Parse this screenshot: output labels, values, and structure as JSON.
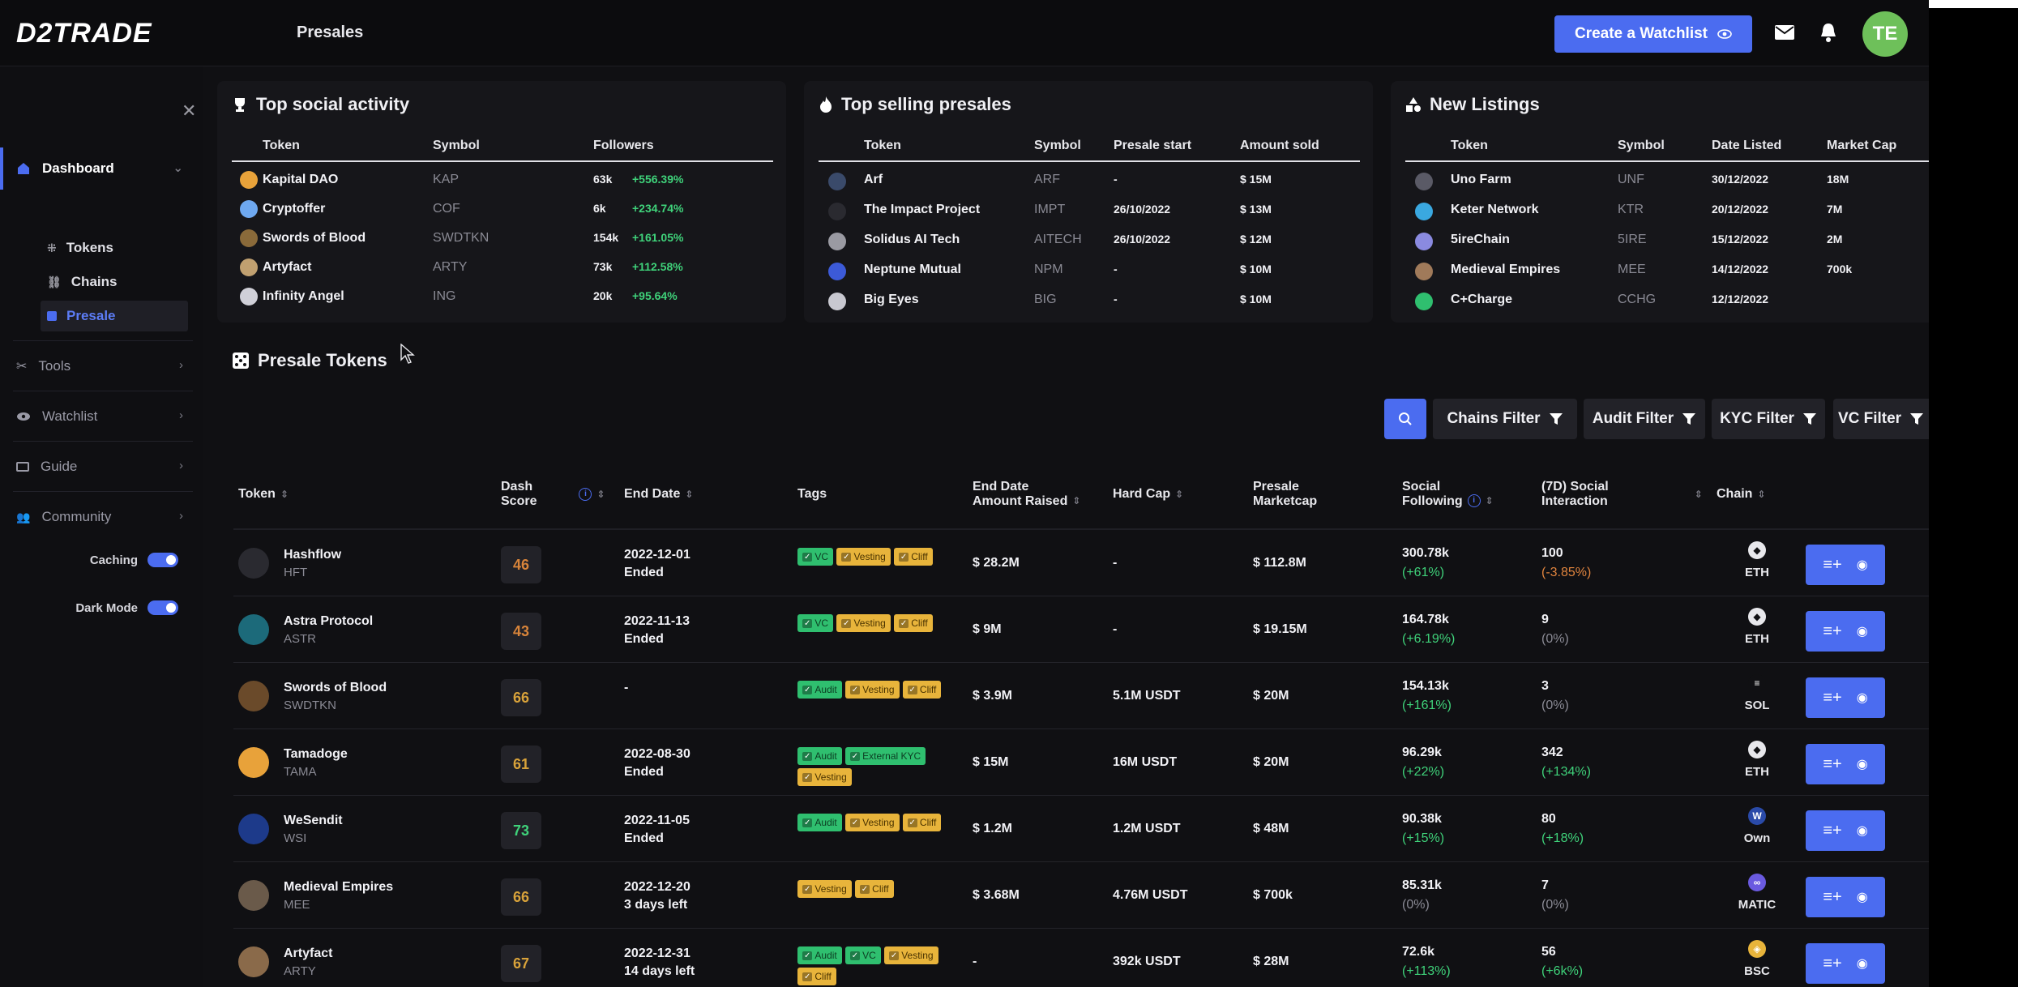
{
  "header": {
    "logo": "D2TRADE",
    "page_title": "Presales",
    "watchlist_button": "Create a Watchlist",
    "avatar_initials": "TE",
    "icons": [
      "eye-icon",
      "mail-icon",
      "bell-icon"
    ]
  },
  "sidebar": {
    "dashboard": "Dashboard",
    "tokens": "Tokens",
    "chains": "Chains",
    "presale": "Presale",
    "tools": "Tools",
    "watchlist": "Watchlist",
    "guide": "Guide",
    "community": "Community",
    "caching": "Caching",
    "dark_mode": "Dark Mode"
  },
  "social": {
    "title": "Top social activity",
    "cols": [
      "Token",
      "Symbol",
      "Followers"
    ],
    "rows": [
      {
        "token": "Kapital DAO",
        "symbol": "KAP",
        "followers": "63k",
        "change": "+556.39%"
      },
      {
        "token": "Cryptoffer",
        "symbol": "COF",
        "followers": "6k",
        "change": "+234.74%"
      },
      {
        "token": "Swords of Blood",
        "symbol": "SWDTKN",
        "followers": "154k",
        "change": "+161.05%"
      },
      {
        "token": "Artyfact",
        "symbol": "ARTY",
        "followers": "73k",
        "change": "+112.58%"
      },
      {
        "token": "Infinity Angel",
        "symbol": "ING",
        "followers": "20k",
        "change": "+95.64%"
      }
    ]
  },
  "selling": {
    "title": "Top selling presales",
    "cols": [
      "Token",
      "Symbol",
      "Presale start",
      "Amount sold"
    ],
    "rows": [
      {
        "token": "Arf",
        "symbol": "ARF",
        "start": "-",
        "amount": "$ 15M"
      },
      {
        "token": "The Impact Project",
        "symbol": "IMPT",
        "start": "26/10/2022",
        "amount": "$ 13M"
      },
      {
        "token": "Solidus AI Tech",
        "symbol": "AITECH",
        "start": "26/10/2022",
        "amount": "$ 12M"
      },
      {
        "token": "Neptune Mutual",
        "symbol": "NPM",
        "start": "-",
        "amount": "$ 10M"
      },
      {
        "token": "Big Eyes",
        "symbol": "BIG",
        "start": "-",
        "amount": "$ 10M"
      }
    ]
  },
  "listings": {
    "title": "New Listings",
    "cols": [
      "Token",
      "Symbol",
      "Date Listed",
      "Market Cap"
    ],
    "rows": [
      {
        "token": "Uno Farm",
        "symbol": "UNF",
        "date": "30/12/2022",
        "cap": "18M"
      },
      {
        "token": "Keter Network",
        "symbol": "KTR",
        "date": "20/12/2022",
        "cap": "7M"
      },
      {
        "token": "5ireChain",
        "symbol": "5IRE",
        "date": "15/12/2022",
        "cap": "2M"
      },
      {
        "token": "Medieval Empires",
        "symbol": "MEE",
        "date": "14/12/2022",
        "cap": "700k"
      },
      {
        "token": "C+Charge",
        "symbol": "CCHG",
        "date": "12/12/2022",
        "cap": ""
      }
    ]
  },
  "presale": {
    "title": "Presale Tokens",
    "filters": [
      "Chains Filter",
      "Audit Filter",
      "KYC Filter",
      "VC Filter"
    ],
    "cols": {
      "token": "Token",
      "dash_score_1": "Dash",
      "dash_score_2": "Score",
      "end_date": "End Date",
      "tags": "Tags",
      "raised_1": "End Date",
      "raised_2": "Amount Raised",
      "hard_cap": "Hard Cap",
      "mcap_1": "Presale",
      "mcap_2": "Marketcap",
      "social_1": "Social",
      "social_2": "Following",
      "interaction_1": "(7D) Social",
      "interaction_2": "Interaction",
      "chain": "Chain"
    },
    "rows": [
      {
        "name": "Hashflow",
        "symbol": "HFT",
        "score": "46",
        "date": "2022-12-01",
        "status": "Ended",
        "tags": [
          "VC",
          "Vesting",
          "Cliff"
        ],
        "raised": "$ 28.2M",
        "cap": "-",
        "mcap": "$ 112.8M",
        "following": "300.78k",
        "following_change": "(+61%)",
        "interaction": "100",
        "interaction_change": "(-3.85%)",
        "chain": "ETH"
      },
      {
        "name": "Astra Protocol",
        "symbol": "ASTR",
        "score": "43",
        "date": "2022-11-13",
        "status": "Ended",
        "tags": [
          "VC",
          "Vesting",
          "Cliff"
        ],
        "raised": "$ 9M",
        "cap": "-",
        "mcap": "$ 19.15M",
        "following": "164.78k",
        "following_change": "(+6.19%)",
        "interaction": "9",
        "interaction_change": "(0%)",
        "chain": "ETH"
      },
      {
        "name": "Swords of Blood",
        "symbol": "SWDTKN",
        "score": "66",
        "date": "-",
        "status": "",
        "tags": [
          "Audit",
          "Vesting",
          "Cliff"
        ],
        "raised": "$ 3.9M",
        "cap": "5.1M  USDT",
        "mcap": "$ 20M",
        "following": "154.13k",
        "following_change": "(+161%)",
        "interaction": "3",
        "interaction_change": "(0%)",
        "chain": "SOL"
      },
      {
        "name": "Tamadoge",
        "symbol": "TAMA",
        "score": "61",
        "date": "2022-08-30",
        "status": "Ended",
        "tags": [
          "Audit",
          "External KYC",
          "Vesting"
        ],
        "raised": "$ 15M",
        "cap": "16M  USDT",
        "mcap": "$ 20M",
        "following": "96.29k",
        "following_change": "(+22%)",
        "interaction": "342",
        "interaction_change": "(+134%)",
        "chain": "ETH"
      },
      {
        "name": "WeSendit",
        "symbol": "WSI",
        "score": "73",
        "date": "2022-11-05",
        "status": "Ended",
        "tags": [
          "Audit",
          "Vesting",
          "Cliff"
        ],
        "raised": "$ 1.2M",
        "cap": "1.2M  USDT",
        "mcap": "$ 48M",
        "following": "90.38k",
        "following_change": "(+15%)",
        "interaction": "80",
        "interaction_change": "(+18%)",
        "chain": "Own"
      },
      {
        "name": "Medieval Empires",
        "symbol": "MEE",
        "score": "66",
        "date": "2022-12-20",
        "status": "3 days left",
        "tags": [
          "Vesting",
          "Cliff"
        ],
        "raised": "$ 3.68M",
        "cap": "4.76M  USDT",
        "mcap": "$ 700k",
        "following": "85.31k",
        "following_change": "(0%)",
        "interaction": "7",
        "interaction_change": "(0%)",
        "chain": "MATIC"
      },
      {
        "name": "Artyfact",
        "symbol": "ARTY",
        "score": "67",
        "date": "2022-12-31",
        "status": "14 days left",
        "tags": [
          "Audit",
          "VC",
          "Vesting",
          "Cliff"
        ],
        "raised": "-",
        "cap": "392k  USDT",
        "mcap": "$ 28M",
        "following": "72.6k",
        "following_change": "(+113%)",
        "interaction": "56",
        "interaction_change": "(+6k%)",
        "chain": "BSC"
      }
    ]
  },
  "colors": {
    "accent": "#4b6cf0",
    "positive": "#3fd27a",
    "negative": "#e0843e",
    "tag_green": "#2fbf6f",
    "tag_yellow": "#e8b43b",
    "score_orange": "#d8843a",
    "score_green": "#3fd27a"
  }
}
